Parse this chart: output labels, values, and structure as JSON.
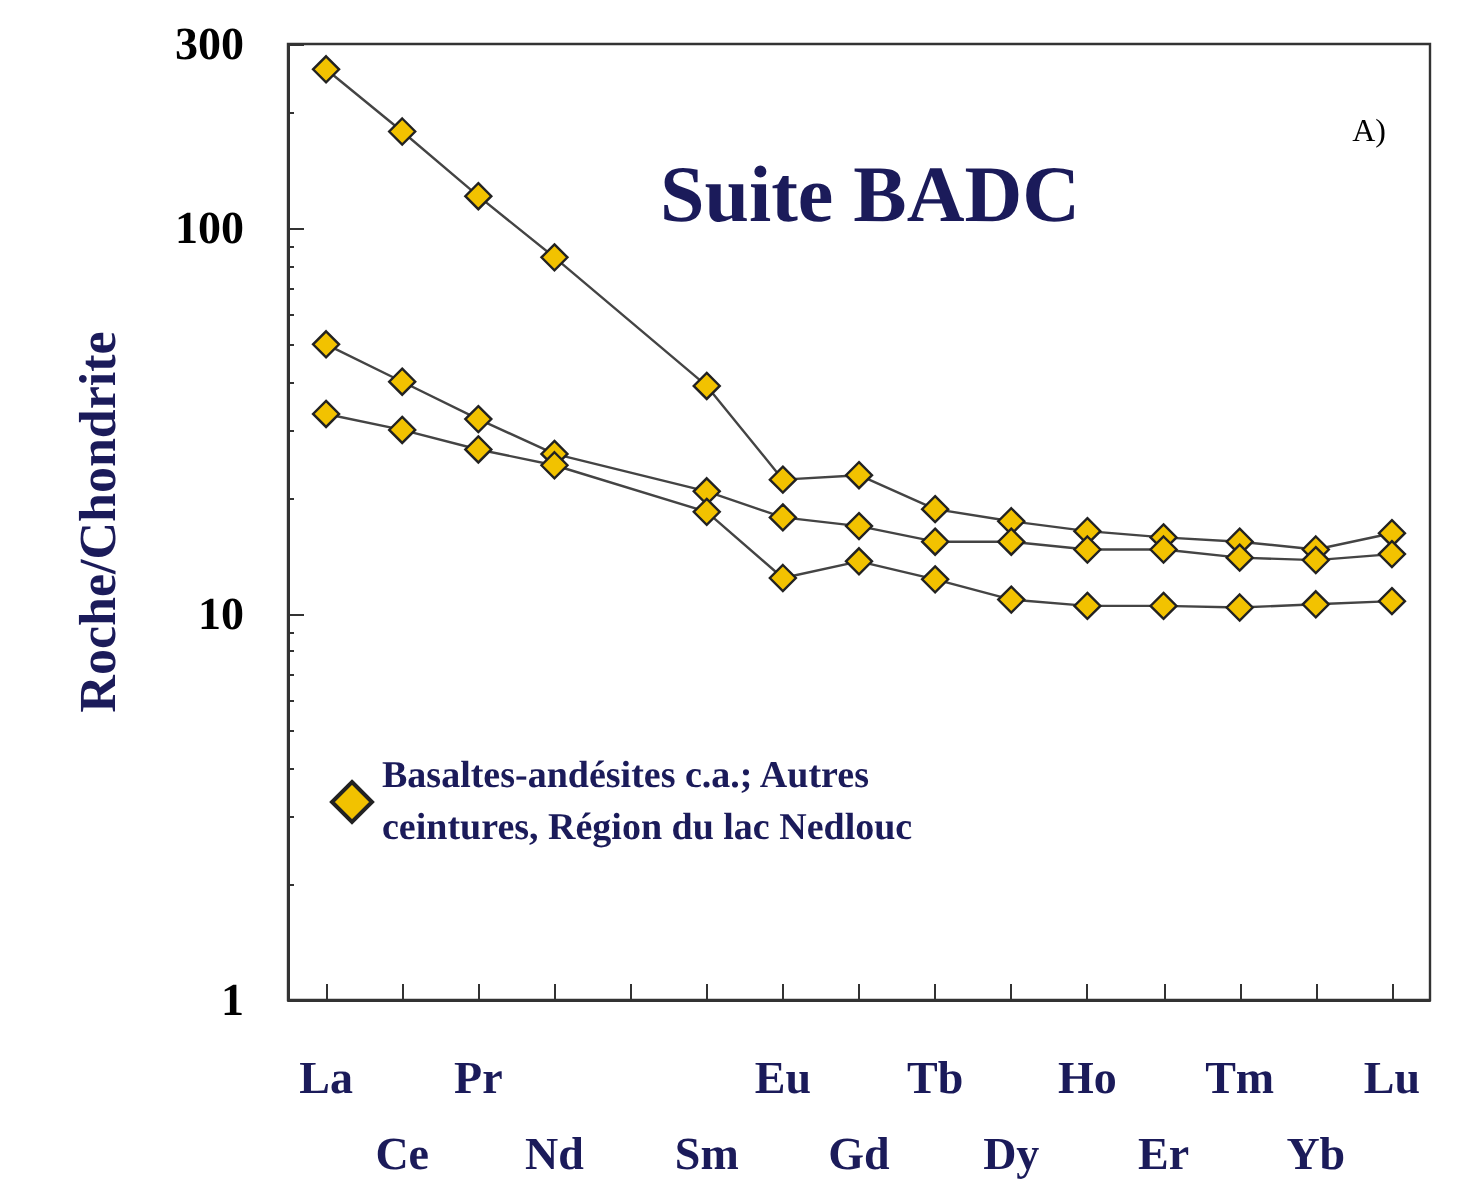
{
  "chart_data": {
    "type": "line",
    "title": "Suite BADC",
    "ylabel": "Roche/Chondrite",
    "annotations": [
      "A)"
    ],
    "categories": [
      "La",
      "Ce",
      "Pr",
      "Nd",
      null,
      "Sm",
      "Eu",
      "Gd",
      "Tb",
      "Dy",
      "Ho",
      "Er",
      "Tm",
      "Yb",
      "Lu"
    ],
    "series": [
      {
        "name": "Basaltes-andésites c.a.; Autres ceintures, Région du lac Nedlouc",
        "color": "#f2c200",
        "values": [
          258,
          178,
          121,
          84,
          null,
          39,
          22.3,
          22.9,
          18.7,
          17.4,
          16.4,
          15.8,
          15.4,
          14.7,
          16.2
        ]
      },
      {
        "color": "#f2c200",
        "values": [
          50,
          40,
          32,
          26,
          null,
          20.8,
          17.8,
          16.9,
          15.4,
          15.4,
          14.7,
          14.7,
          14,
          13.8,
          14.3
        ]
      },
      {
        "color": "#f2c200",
        "values": [
          33,
          30,
          26.7,
          24.3,
          null,
          18.4,
          12.4,
          13.7,
          12.3,
          10.9,
          10.5,
          10.5,
          10.4,
          10.6,
          10.8
        ]
      }
    ],
    "log": "y",
    "ylim": [
      1,
      300
    ],
    "yticks": [
      1,
      10,
      100,
      300
    ],
    "grid": false,
    "legend": "left",
    "marker": "diamond",
    "line_style": "solid"
  }
}
